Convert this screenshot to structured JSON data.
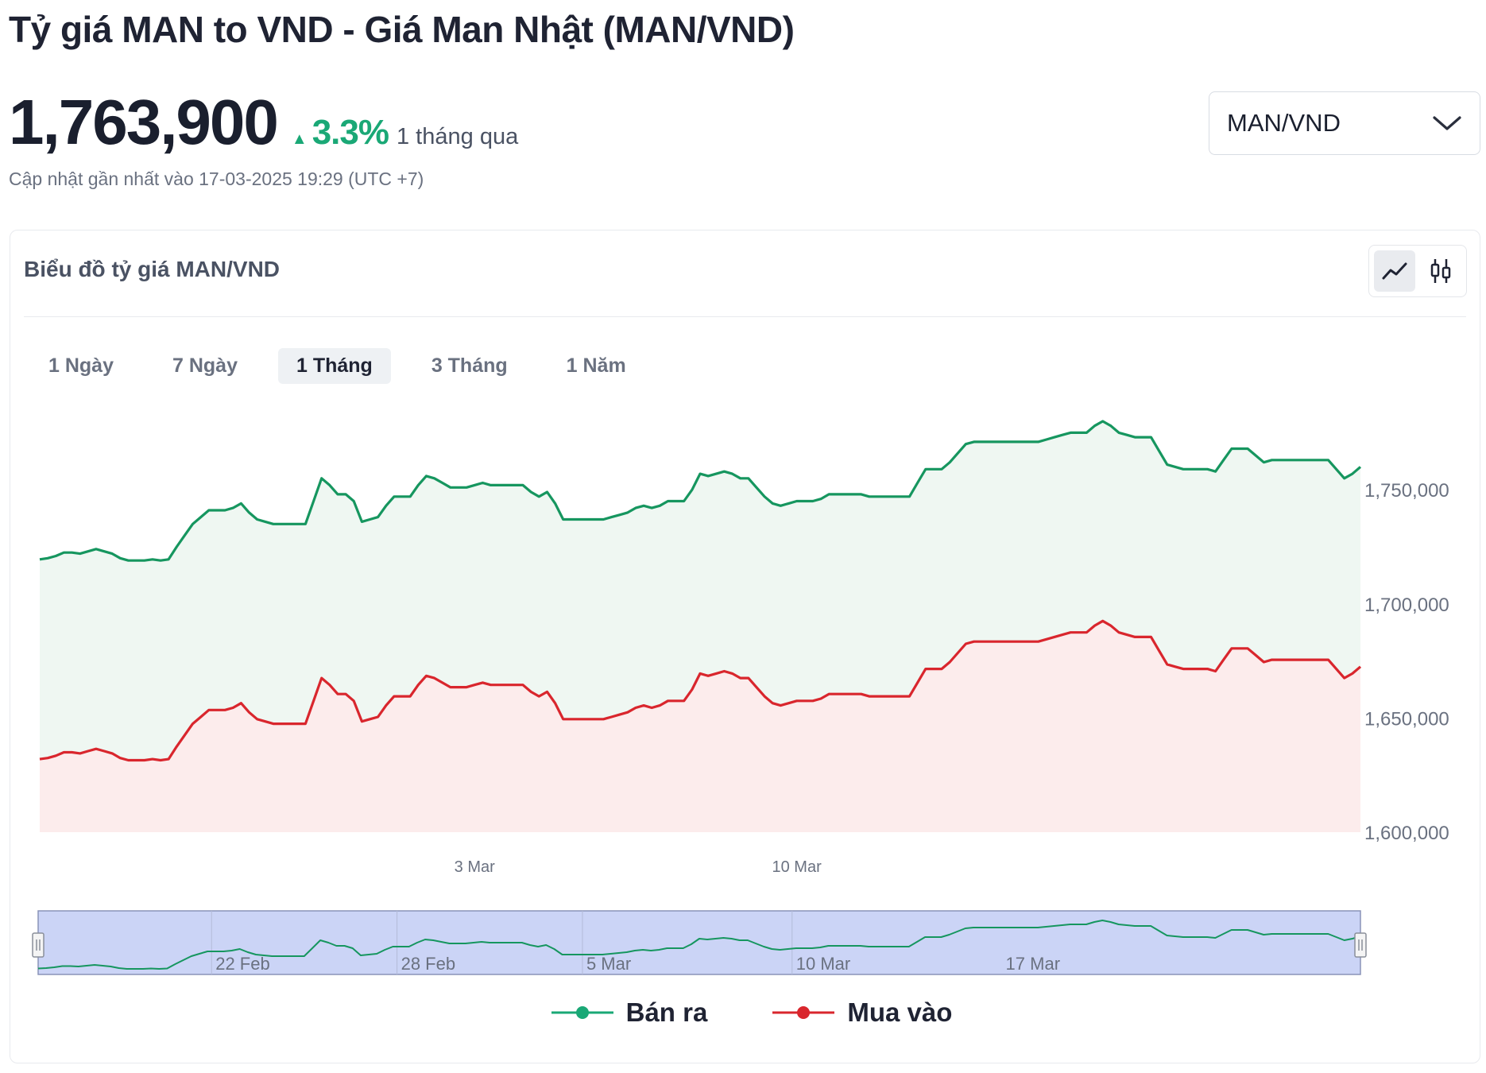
{
  "page": {
    "title": "Tỷ giá MAN to VND - Giá Man Nhật (MAN/VND)"
  },
  "summary": {
    "price": "1,763,900",
    "change_pct": "3.3%",
    "change_period": "1 tháng qua",
    "updated": "Cập nhật gần nhất vào 17-03-2025 19:29 (UTC +7)"
  },
  "pair_select": {
    "value": "MAN/VND"
  },
  "card": {
    "title": "Biểu đồ tỷ giá MAN/VND"
  },
  "range_tabs": [
    {
      "label": "1 Ngày",
      "active": false
    },
    {
      "label": "7 Ngày",
      "active": false
    },
    {
      "label": "1 Tháng",
      "active": true
    },
    {
      "label": "3 Tháng",
      "active": false
    },
    {
      "label": "1 Năm",
      "active": false
    }
  ],
  "legend": {
    "sell_label": "Bán ra",
    "buy_label": "Mua vào"
  },
  "colors": {
    "sell": "#16965f",
    "buy": "#d9262d",
    "sell_fill": "#eff7f2",
    "buy_fill": "#fcecec",
    "navigator_fill": "#cbd4f6",
    "accent_up": "#1aa876"
  },
  "chart_data": {
    "type": "area",
    "ylim": [
      1600000,
      1780000
    ],
    "y_ticks": [
      "1,600,000",
      "1,650,000",
      "1,700,000",
      "1,750,000"
    ],
    "y_tick_values": [
      1600000,
      1650000,
      1700000,
      1750000
    ],
    "x_ticks": [
      "3 Mar",
      "10 Mar"
    ],
    "x_tick_index": [
      54,
      94
    ],
    "navigator_ticks": [
      "22 Feb",
      "28 Feb",
      "5 Mar",
      "10 Mar",
      "17 Mar"
    ],
    "navigator_tick_index": [
      22,
      45,
      68,
      94,
      120
    ],
    "series": [
      {
        "name": "Bán ra",
        "values": [
          1719500,
          1720000,
          1721000,
          1722500,
          1722500,
          1722000,
          1723000,
          1724000,
          1723000,
          1722000,
          1720000,
          1719000,
          1719000,
          1719000,
          1719500,
          1719000,
          1719500,
          1725000,
          1730000,
          1735000,
          1738000,
          1741000,
          1741000,
          1741000,
          1742000,
          1744000,
          1740000,
          1737000,
          1736000,
          1735000,
          1735000,
          1735000,
          1735000,
          1735000,
          1745000,
          1755000,
          1752000,
          1748000,
          1748000,
          1745000,
          1736000,
          1737000,
          1738000,
          1743000,
          1747000,
          1747000,
          1747000,
          1752000,
          1756000,
          1755000,
          1753000,
          1751000,
          1751000,
          1751000,
          1752000,
          1753000,
          1752000,
          1752000,
          1752000,
          1752000,
          1752000,
          1749000,
          1747000,
          1749000,
          1744000,
          1737000,
          1737000,
          1737000,
          1737000,
          1737000,
          1737000,
          1738000,
          1739000,
          1740000,
          1742000,
          1743000,
          1742000,
          1743000,
          1745000,
          1745000,
          1745000,
          1750000,
          1757000,
          1756000,
          1757000,
          1758000,
          1757000,
          1755000,
          1755000,
          1751000,
          1747000,
          1744000,
          1743000,
          1744000,
          1745000,
          1745000,
          1745000,
          1746000,
          1748000,
          1748000,
          1748000,
          1748000,
          1748000,
          1747000,
          1747000,
          1747000,
          1747000,
          1747000,
          1747000,
          1753000,
          1759000,
          1759000,
          1759000,
          1762000,
          1766000,
          1770000,
          1771000,
          1771000,
          1771000,
          1771000,
          1771000,
          1771000,
          1771000,
          1771000,
          1771000,
          1772000,
          1773000,
          1774000,
          1775000,
          1775000,
          1775000,
          1778000,
          1780000,
          1778000,
          1775000,
          1774000,
          1773000,
          1773000,
          1773000,
          1767000,
          1761000,
          1760000,
          1759000,
          1759000,
          1759000,
          1759000,
          1758000,
          1763000,
          1768000,
          1768000,
          1768000,
          1765000,
          1762000,
          1763000,
          1763000,
          1763000,
          1763000,
          1763000,
          1763000,
          1763000,
          1763000,
          1759000,
          1755000,
          1757000,
          1760000
        ]
      },
      {
        "name": "Mua vào",
        "values": [
          1632000,
          1632500,
          1633500,
          1635000,
          1635000,
          1634500,
          1635500,
          1636500,
          1635500,
          1634500,
          1632500,
          1631500,
          1631500,
          1631500,
          1632000,
          1631500,
          1632000,
          1637500,
          1642500,
          1647500,
          1650500,
          1653500,
          1653500,
          1653500,
          1654500,
          1656500,
          1652500,
          1649500,
          1648500,
          1647500,
          1647500,
          1647500,
          1647500,
          1647500,
          1657500,
          1667500,
          1664500,
          1660500,
          1660500,
          1657500,
          1648500,
          1649500,
          1650500,
          1655500,
          1659500,
          1659500,
          1659500,
          1664500,
          1668500,
          1667500,
          1665500,
          1663500,
          1663500,
          1663500,
          1664500,
          1665500,
          1664500,
          1664500,
          1664500,
          1664500,
          1664500,
          1661500,
          1659500,
          1661500,
          1656500,
          1649500,
          1649500,
          1649500,
          1649500,
          1649500,
          1649500,
          1650500,
          1651500,
          1652500,
          1654500,
          1655500,
          1654500,
          1655500,
          1657500,
          1657500,
          1657500,
          1662500,
          1669500,
          1668500,
          1669500,
          1670500,
          1669500,
          1667500,
          1667500,
          1663500,
          1659500,
          1656500,
          1655500,
          1656500,
          1657500,
          1657500,
          1657500,
          1658500,
          1660500,
          1660500,
          1660500,
          1660500,
          1660500,
          1659500,
          1659500,
          1659500,
          1659500,
          1659500,
          1659500,
          1665500,
          1671500,
          1671500,
          1671500,
          1674500,
          1678500,
          1682500,
          1683500,
          1683500,
          1683500,
          1683500,
          1683500,
          1683500,
          1683500,
          1683500,
          1683500,
          1684500,
          1685500,
          1686500,
          1687500,
          1687500,
          1687500,
          1690500,
          1692500,
          1690500,
          1687500,
          1686500,
          1685500,
          1685500,
          1685500,
          1679500,
          1673500,
          1672500,
          1671500,
          1671500,
          1671500,
          1671500,
          1670500,
          1675500,
          1680500,
          1680500,
          1680500,
          1677500,
          1674500,
          1675500,
          1675500,
          1675500,
          1675500,
          1675500,
          1675500,
          1675500,
          1675500,
          1671500,
          1667500,
          1669500,
          1672500
        ]
      }
    ]
  }
}
